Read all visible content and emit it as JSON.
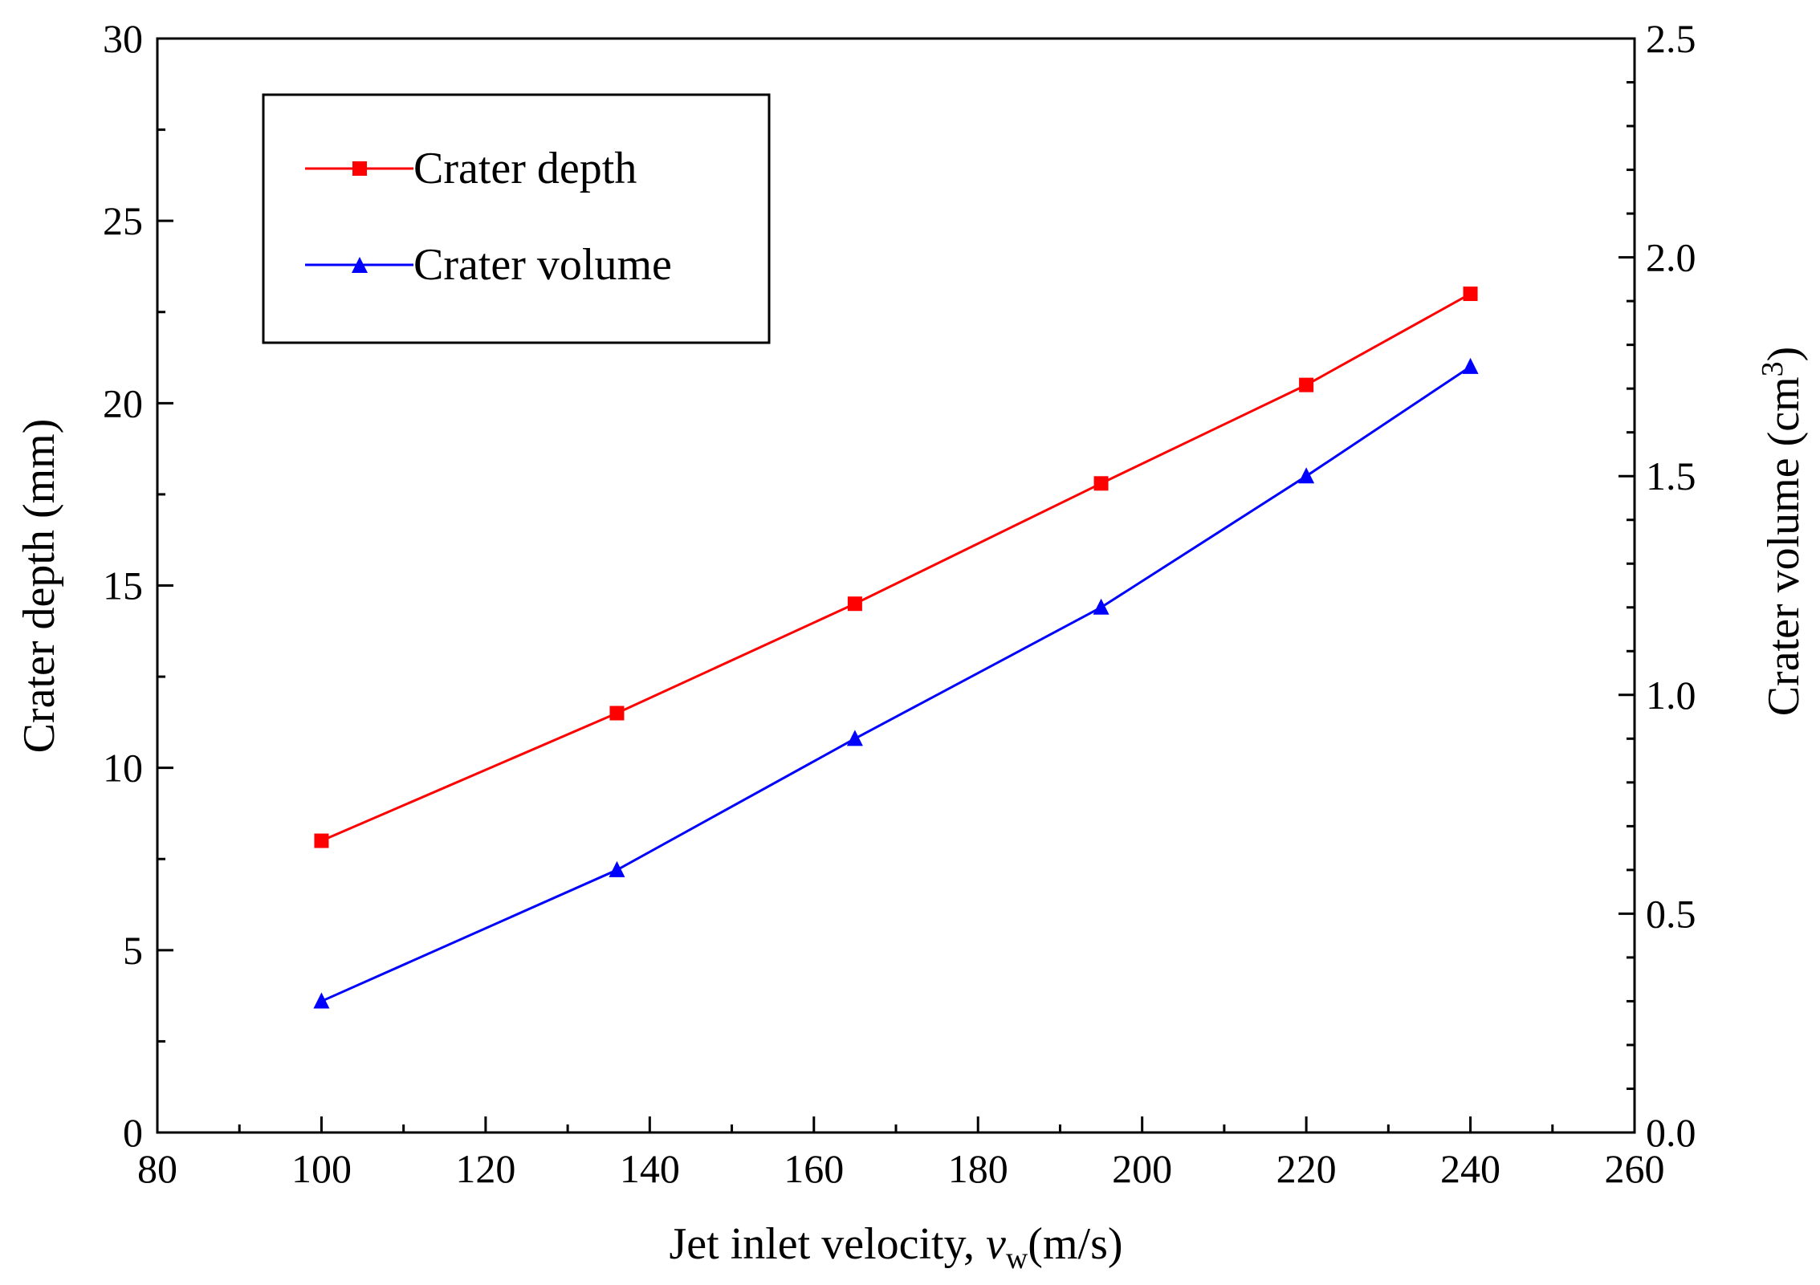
{
  "chart_data": {
    "type": "line",
    "title": "",
    "xlabel_prefix": "Jet inlet velocity, ",
    "xlabel_var": "v",
    "xlabel_sub": "w",
    "xlabel_suffix": "(m/s)",
    "ylabel": "Crater depth  (mm)",
    "y2label_main": "Crater volume (cm",
    "y2label_sup": "3",
    "y2label_close": ")",
    "xlim": [
      80,
      260
    ],
    "ylim": [
      0,
      30
    ],
    "y2lim": [
      0.0,
      2.5
    ],
    "xticks": [
      "80",
      "100",
      "120",
      "140",
      "160",
      "180",
      "200",
      "220",
      "240",
      "260"
    ],
    "yticks": [
      "0",
      "5",
      "10",
      "15",
      "20",
      "25",
      "30"
    ],
    "y2ticks": [
      "0.0",
      "0.5",
      "1.0",
      "1.5",
      "2.0",
      "2.5"
    ],
    "grid": false,
    "legend_position": "top-left",
    "series": [
      {
        "name": "Crater depth",
        "axis": "left",
        "marker": "square",
        "color": "#ff0000",
        "x": [
          100,
          136,
          165,
          195,
          220,
          240
        ],
        "y": [
          8.0,
          11.5,
          14.5,
          17.8,
          20.5,
          23.0
        ]
      },
      {
        "name": "Crater volume",
        "axis": "right",
        "marker": "triangle",
        "color": "#0000ff",
        "x": [
          100,
          136,
          165,
          195,
          220,
          240
        ],
        "y": [
          0.3,
          0.6,
          0.9,
          1.2,
          1.5,
          1.75
        ]
      }
    ]
  }
}
